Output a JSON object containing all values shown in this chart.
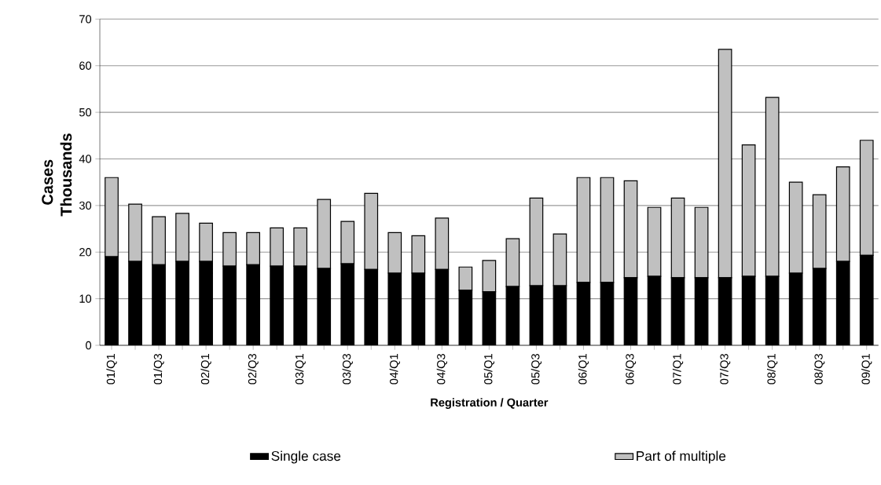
{
  "chart_data": {
    "type": "bar",
    "stacked": true,
    "xlabel": "Registration / Quarter",
    "ylabel": "Cases Thousands",
    "categories": [
      "01/Q1",
      null,
      "01/Q3",
      null,
      "02/Q1",
      null,
      "02/Q3",
      null,
      "03/Q1",
      null,
      "03/Q3",
      null,
      "04/Q1",
      null,
      "04/Q3",
      null,
      "05/Q1",
      null,
      "05/Q3",
      null,
      "06/Q1",
      null,
      "06/Q3",
      null,
      "07/Q1",
      null,
      "07/Q3",
      null,
      "08/Q1",
      null,
      "08/Q3",
      null,
      "09/Q1"
    ],
    "series": [
      {
        "name": "Single case",
        "color": "#000000",
        "values": [
          19,
          18,
          17.3,
          18,
          18,
          17,
          17.3,
          17,
          17,
          16.5,
          17.5,
          16.3,
          15.5,
          15.5,
          16.3,
          11.8,
          11.5,
          12.6,
          12.8,
          12.8,
          13.5,
          13.5,
          14.5,
          14.8,
          14.5,
          14.5,
          14.5,
          14.8,
          14.8,
          15.5,
          16.5,
          18,
          19.3
        ]
      },
      {
        "name": "Part of multiple",
        "color": "#c0c0c0",
        "values": [
          17,
          12.3,
          10.3,
          10.3,
          8.2,
          7.2,
          6.9,
          8.2,
          8.2,
          14.8,
          9.1,
          16.3,
          8.7,
          8,
          11,
          5,
          6.7,
          10.3,
          18.8,
          11.1,
          22.5,
          22.5,
          20.8,
          14.8,
          17.1,
          15.1,
          49,
          28.2,
          38.4,
          19.5,
          15.8,
          20.3,
          24.7
        ]
      }
    ],
    "ylim": [
      0,
      70
    ],
    "yticks": [
      0,
      10,
      20,
      30,
      40,
      50,
      60,
      70
    ],
    "grid": "y",
    "legend": "bottom"
  }
}
